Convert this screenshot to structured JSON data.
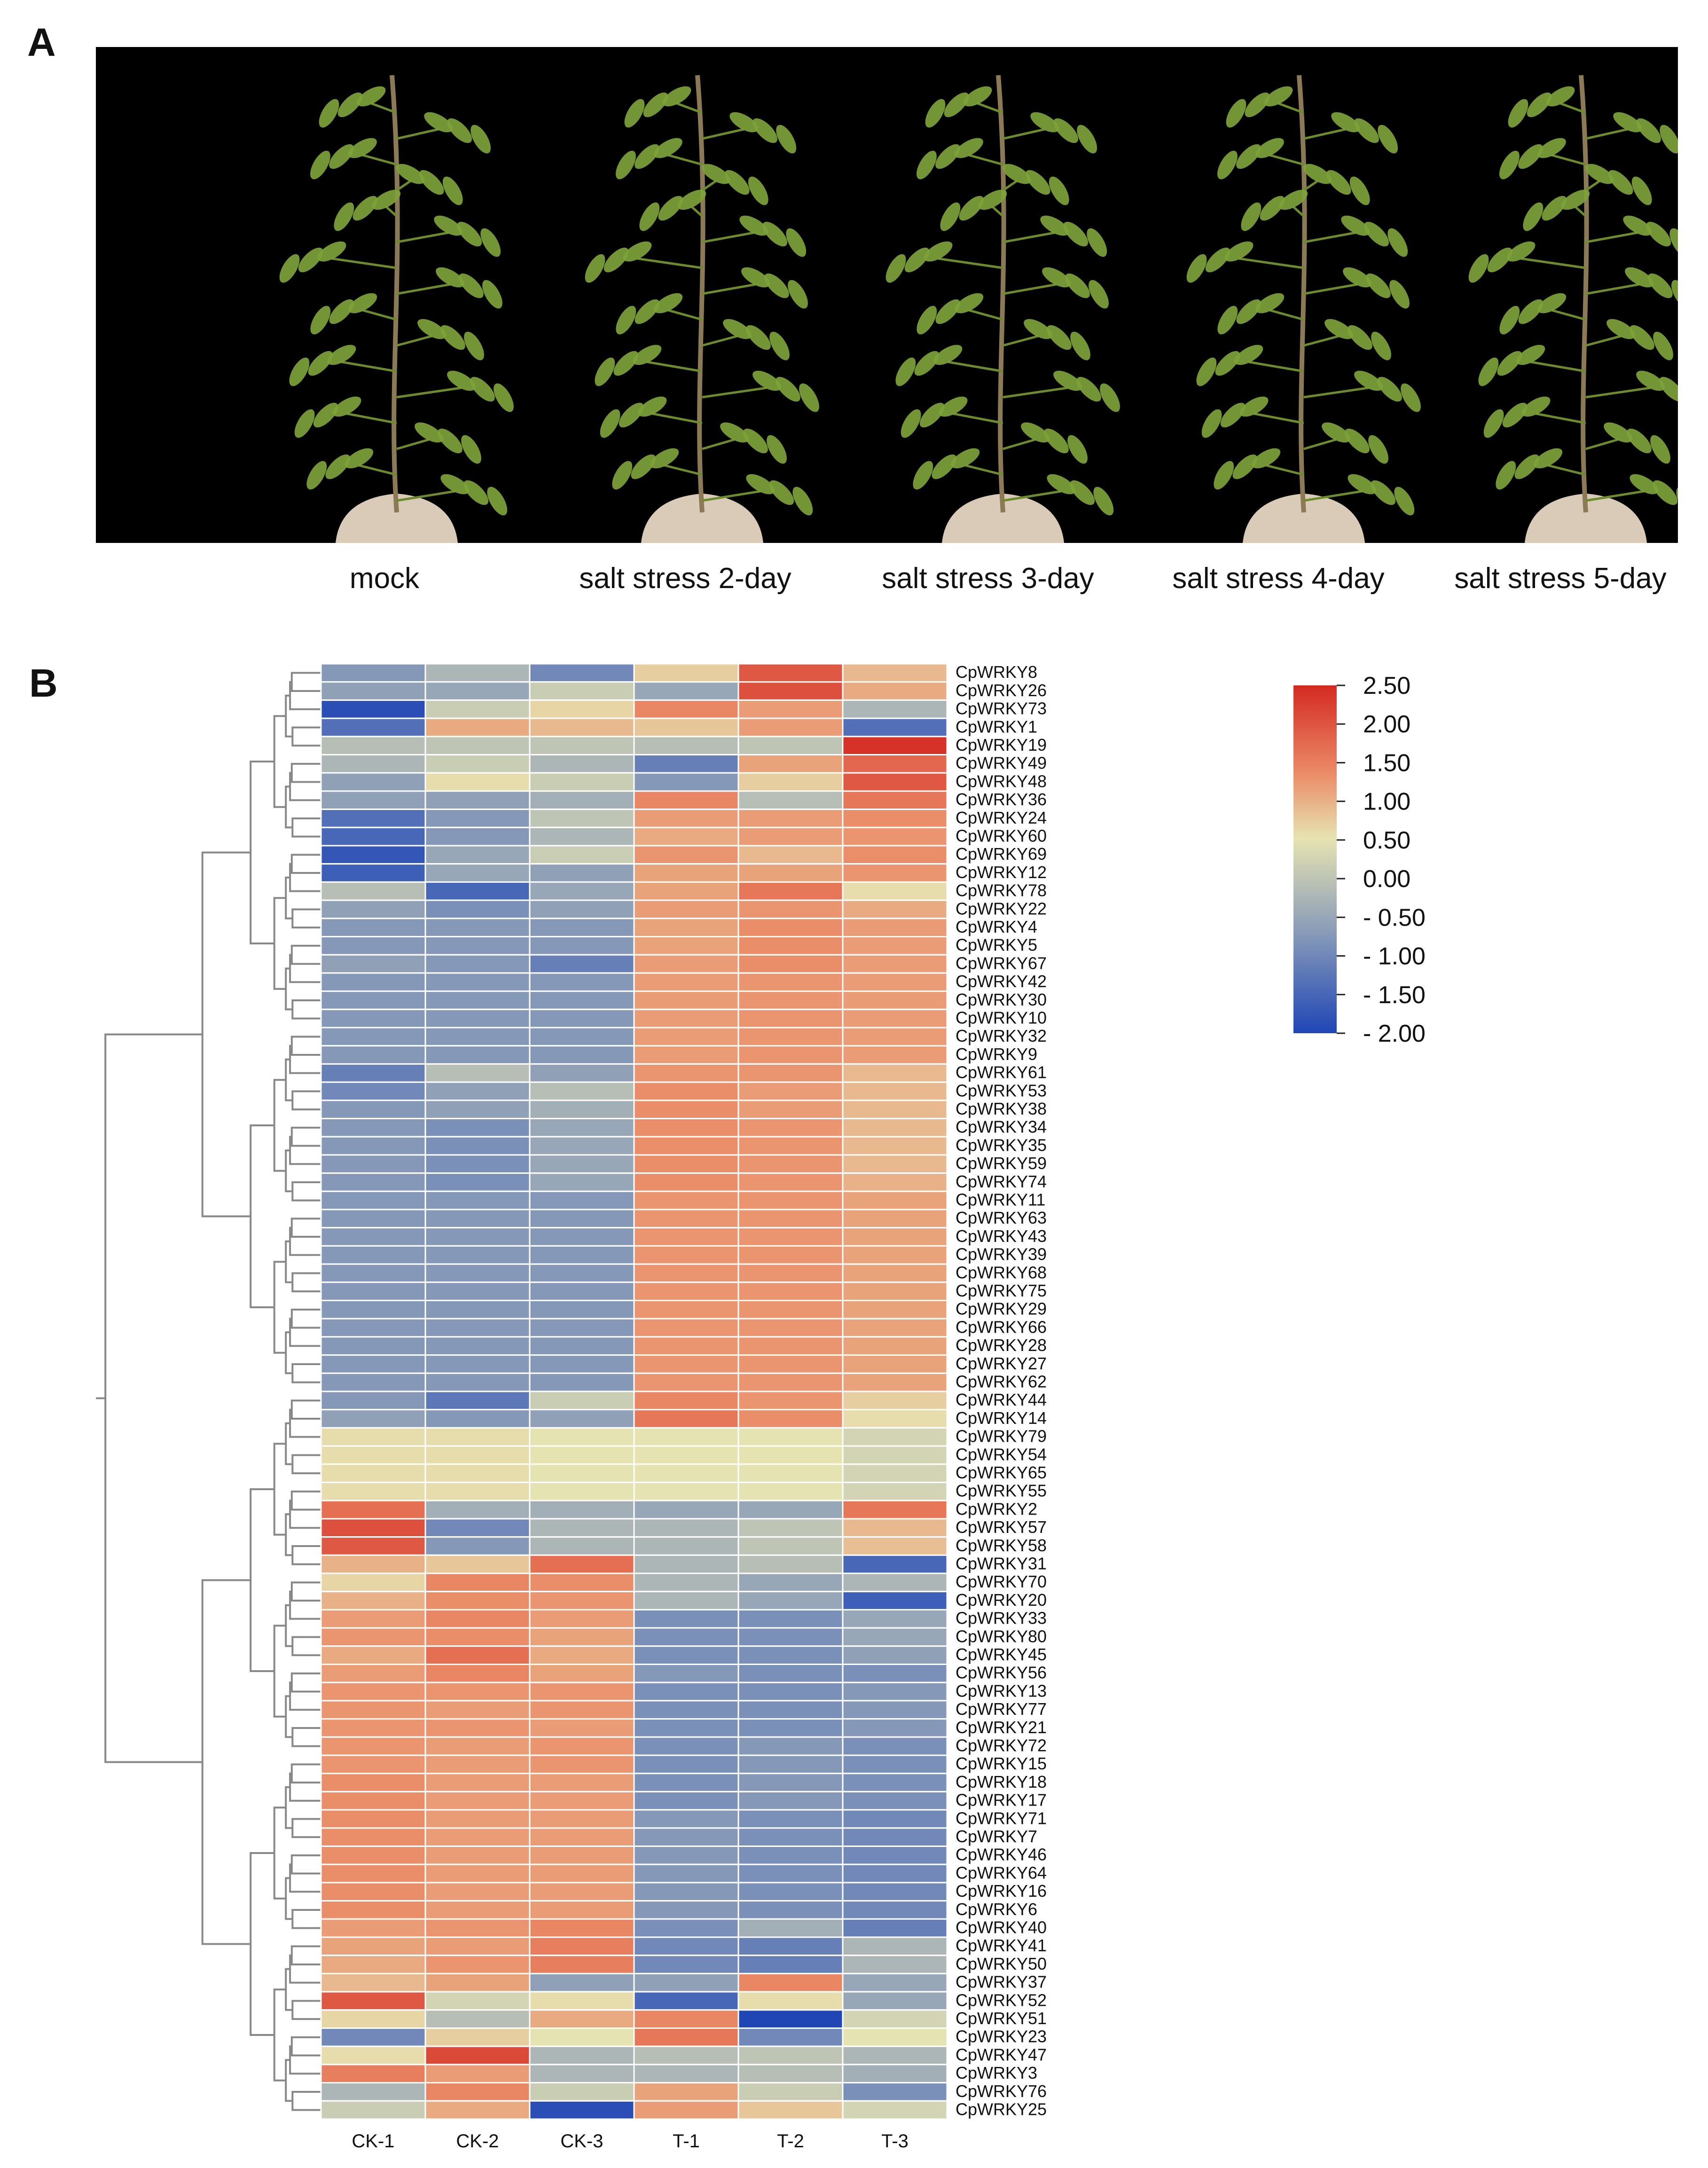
{
  "panels": {
    "a_label": "A",
    "b_label": "B"
  },
  "panel_a": {
    "image_description_items": [
      "mock",
      "salt stress 2-day",
      "salt stress 3-day",
      "salt stress 4-day",
      "salt stress 5-day"
    ],
    "captions": [
      "mock",
      "salt stress 2-day",
      "salt stress 3-day",
      "salt stress 4-day",
      "salt stress 5-day"
    ],
    "background": "#000000",
    "leaf_color": "#7ea23a",
    "pot_color": "#d9cbb8"
  },
  "colors": {
    "high": "#d42a22",
    "mid_high": "#ea8a66",
    "zero": "#e6e3b2",
    "mid_low": "#8598b8",
    "low": "#2046b6",
    "dendrogram": "#888888",
    "cell_border": "#ffffff"
  },
  "chart_data": {
    "type": "heatmap",
    "title": "",
    "columns": [
      "CK-1",
      "CK-2",
      "CK-3",
      "T-1",
      "T-2",
      "T-3"
    ],
    "rows": [
      "CpWRKY8",
      "CpWRKY26",
      "CpWRKY73",
      "CpWRKY1",
      "CpWRKY19",
      "CpWRKY49",
      "CpWRKY48",
      "CpWRKY36",
      "CpWRKY24",
      "CpWRKY60",
      "CpWRKY69",
      "CpWRKY12",
      "CpWRKY78",
      "CpWRKY22",
      "CpWRKY4",
      "CpWRKY5",
      "CpWRKY67",
      "CpWRKY42",
      "CpWRKY30",
      "CpWRKY10",
      "CpWRKY32",
      "CpWRKY9",
      "CpWRKY61",
      "CpWRKY53",
      "CpWRKY38",
      "CpWRKY34",
      "CpWRKY35",
      "CpWRKY59",
      "CpWRKY74",
      "CpWRKY11",
      "CpWRKY63",
      "CpWRKY43",
      "CpWRKY39",
      "CpWRKY68",
      "CpWRKY75",
      "CpWRKY29",
      "CpWRKY66",
      "CpWRKY28",
      "CpWRKY27",
      "CpWRKY62",
      "CpWRKY44",
      "CpWRKY14",
      "CpWRKY79",
      "CpWRKY54",
      "CpWRKY65",
      "CpWRKY55",
      "CpWRKY2",
      "CpWRKY57",
      "CpWRKY58",
      "CpWRKY31",
      "CpWRKY70",
      "CpWRKY20",
      "CpWRKY33",
      "CpWRKY80",
      "CpWRKY45",
      "CpWRKY56",
      "CpWRKY13",
      "CpWRKY77",
      "CpWRKY21",
      "CpWRKY72",
      "CpWRKY15",
      "CpWRKY18",
      "CpWRKY17",
      "CpWRKY71",
      "CpWRKY7",
      "CpWRKY46",
      "CpWRKY64",
      "CpWRKY16",
      "CpWRKY6",
      "CpWRKY40",
      "CpWRKY41",
      "CpWRKY50",
      "CpWRKY37",
      "CpWRKY52",
      "CpWRKY51",
      "CpWRKY23",
      "CpWRKY47",
      "CpWRKY3",
      "CpWRKY76",
      "CpWRKY25"
    ],
    "values": [
      [
        -1.0,
        -0.6,
        -1.2,
        0.3,
        1.9,
        0.6
      ],
      [
        -0.9,
        -0.8,
        -0.3,
        -0.8,
        2.0,
        0.8
      ],
      [
        -1.9,
        -0.3,
        0.2,
        1.3,
        1.0,
        -0.6
      ],
      [
        -1.5,
        0.8,
        0.6,
        0.4,
        1.0,
        -1.5
      ],
      [
        -0.5,
        -0.4,
        -0.4,
        -0.5,
        -0.4,
        2.4
      ],
      [
        -0.6,
        -0.3,
        -0.6,
        -1.3,
        0.9,
        1.7
      ],
      [
        -0.9,
        0.1,
        -0.3,
        -1.0,
        0.3,
        1.9
      ],
      [
        -0.9,
        -0.9,
        -0.7,
        1.3,
        -0.5,
        1.5
      ],
      [
        -1.5,
        -1.0,
        -0.4,
        1.0,
        1.0,
        1.2
      ],
      [
        -1.6,
        -1.0,
        -0.6,
        0.8,
        1.0,
        1.1
      ],
      [
        -1.8,
        -0.8,
        -0.3,
        1.1,
        0.6,
        1.2
      ],
      [
        -1.7,
        -0.8,
        -0.9,
        0.9,
        0.9,
        1.1
      ],
      [
        -0.5,
        -1.6,
        -0.8,
        0.9,
        1.5,
        0.1
      ],
      [
        -0.9,
        -1.1,
        -0.9,
        1.0,
        1.1,
        0.8
      ],
      [
        -1.0,
        -1.0,
        -1.0,
        0.9,
        1.2,
        1.0
      ],
      [
        -1.0,
        -1.0,
        -1.0,
        0.9,
        1.2,
        1.0
      ],
      [
        -0.9,
        -1.0,
        -1.3,
        1.0,
        1.2,
        1.0
      ],
      [
        -1.0,
        -1.0,
        -1.0,
        1.0,
        1.1,
        1.0
      ],
      [
        -1.0,
        -1.0,
        -1.0,
        1.0,
        1.1,
        1.0
      ],
      [
        -1.0,
        -1.0,
        -1.0,
        1.0,
        1.1,
        1.0
      ],
      [
        -1.0,
        -1.0,
        -1.0,
        1.0,
        1.1,
        1.0
      ],
      [
        -1.0,
        -1.0,
        -1.0,
        1.0,
        1.1,
        1.0
      ],
      [
        -1.3,
        -0.5,
        -0.9,
        1.1,
        1.1,
        0.6
      ],
      [
        -1.2,
        -0.9,
        -0.5,
        1.2,
        1.0,
        0.6
      ],
      [
        -1.0,
        -0.9,
        -0.7,
        1.2,
        1.0,
        0.6
      ],
      [
        -1.0,
        -1.1,
        -0.8,
        1.2,
        1.1,
        0.6
      ],
      [
        -1.0,
        -1.1,
        -0.8,
        1.2,
        1.1,
        0.6
      ],
      [
        -1.0,
        -1.1,
        -0.8,
        1.2,
        1.1,
        0.6
      ],
      [
        -1.0,
        -1.1,
        -0.8,
        1.2,
        1.1,
        0.7
      ],
      [
        -1.0,
        -1.0,
        -1.0,
        1.1,
        1.1,
        0.9
      ],
      [
        -1.0,
        -1.0,
        -1.0,
        1.1,
        1.1,
        0.9
      ],
      [
        -1.0,
        -1.0,
        -1.0,
        1.1,
        1.1,
        0.9
      ],
      [
        -1.0,
        -1.0,
        -1.0,
        1.1,
        1.1,
        0.9
      ],
      [
        -1.0,
        -1.0,
        -1.0,
        1.1,
        1.1,
        0.9
      ],
      [
        -1.0,
        -1.0,
        -1.0,
        1.1,
        1.1,
        0.9
      ],
      [
        -1.0,
        -1.0,
        -1.0,
        1.1,
        1.1,
        0.9
      ],
      [
        -1.0,
        -1.0,
        -1.0,
        1.1,
        1.1,
        0.9
      ],
      [
        -1.0,
        -1.0,
        -1.0,
        1.1,
        1.1,
        0.9
      ],
      [
        -1.0,
        -1.0,
        -1.0,
        1.1,
        1.1,
        0.9
      ],
      [
        -1.0,
        -1.0,
        -1.0,
        1.1,
        1.1,
        0.9
      ],
      [
        -1.0,
        -1.4,
        -0.3,
        1.3,
        1.1,
        0.3
      ],
      [
        -0.9,
        -1.0,
        -0.9,
        1.5,
        1.2,
        0.1
      ],
      [
        0.1,
        0.1,
        0.0,
        0.0,
        0.0,
        -0.2
      ],
      [
        0.1,
        0.1,
        0.0,
        0.0,
        0.0,
        -0.2
      ],
      [
        0.1,
        0.1,
        0.0,
        0.0,
        0.0,
        -0.2
      ],
      [
        0.1,
        0.1,
        0.0,
        0.0,
        0.0,
        -0.2
      ],
      [
        1.6,
        -0.7,
        -0.7,
        -0.8,
        -0.8,
        1.5
      ],
      [
        2.0,
        -1.2,
        -0.6,
        -0.6,
        -0.4,
        0.6
      ],
      [
        1.9,
        -1.0,
        -0.6,
        -0.6,
        -0.4,
        0.5
      ],
      [
        0.7,
        0.4,
        1.6,
        -0.6,
        -0.5,
        -1.6
      ],
      [
        0.2,
        1.3,
        1.2,
        -0.6,
        -0.8,
        -0.6
      ],
      [
        0.7,
        1.2,
        1.1,
        -0.6,
        -0.8,
        -1.7
      ],
      [
        1.0,
        1.3,
        1.0,
        -1.1,
        -1.1,
        -0.8
      ],
      [
        1.1,
        1.2,
        0.9,
        -1.1,
        -1.1,
        -0.8
      ],
      [
        0.8,
        1.6,
        0.8,
        -1.1,
        -1.1,
        -0.9
      ],
      [
        1.0,
        1.3,
        0.9,
        -1.0,
        -1.1,
        -1.1
      ],
      [
        1.1,
        1.1,
        1.1,
        -1.1,
        -1.1,
        -1.0
      ],
      [
        1.1,
        1.0,
        1.1,
        -1.1,
        -1.1,
        -1.0
      ],
      [
        1.1,
        1.1,
        1.0,
        -1.1,
        -1.1,
        -1.0
      ],
      [
        1.1,
        1.0,
        1.1,
        -1.1,
        -1.0,
        -1.1
      ],
      [
        1.1,
        1.0,
        1.1,
        -1.1,
        -1.0,
        -1.1
      ],
      [
        1.2,
        1.0,
        1.0,
        -1.1,
        -1.0,
        -1.1
      ],
      [
        1.2,
        1.0,
        1.0,
        -1.1,
        -1.0,
        -1.1
      ],
      [
        1.2,
        1.0,
        1.0,
        -1.0,
        -1.1,
        -1.2
      ],
      [
        1.2,
        1.0,
        1.0,
        -1.0,
        -1.1,
        -1.2
      ],
      [
        1.2,
        1.0,
        1.0,
        -1.0,
        -1.1,
        -1.2
      ],
      [
        1.2,
        1.0,
        1.0,
        -1.0,
        -1.1,
        -1.2
      ],
      [
        1.2,
        1.0,
        1.0,
        -1.0,
        -1.1,
        -1.2
      ],
      [
        1.2,
        1.0,
        1.0,
        -1.0,
        -1.1,
        -1.2
      ],
      [
        1.0,
        1.1,
        1.3,
        -1.1,
        -0.7,
        -1.3
      ],
      [
        0.9,
        1.0,
        1.4,
        -1.2,
        -1.3,
        -0.6
      ],
      [
        0.8,
        1.1,
        1.4,
        -1.2,
        -1.3,
        -0.6
      ],
      [
        0.6,
        0.9,
        -0.9,
        -0.9,
        1.3,
        -0.8
      ],
      [
        1.9,
        -0.2,
        0.1,
        -1.6,
        0.1,
        -0.8
      ],
      [
        0.2,
        -0.5,
        0.8,
        1.3,
        -2.0,
        -0.2
      ],
      [
        -1.2,
        0.3,
        0.0,
        1.5,
        -1.2,
        0.0
      ],
      [
        0.1,
        2.1,
        -0.6,
        -0.5,
        -0.4,
        -0.6
      ],
      [
        1.4,
        1.0,
        -0.6,
        -0.6,
        -0.5,
        -0.7
      ],
      [
        -0.6,
        1.3,
        -0.3,
        0.9,
        -0.3,
        -1.1
      ],
      [
        -0.3,
        0.8,
        -1.9,
        1.0,
        0.4,
        -0.2
      ]
    ],
    "xlabel": "",
    "ylabel": "",
    "color_range": [
      -2.0,
      2.5
    ],
    "colorbar_ticks": [
      "2.50",
      "2.00",
      "1.50",
      "1.00",
      "0.50",
      "0.00",
      "- 0.50",
      "- 1.00",
      "- 1.50",
      "- 2.00"
    ],
    "colorbar_tick_values": [
      2.5,
      2.0,
      1.5,
      1.0,
      0.5,
      0.0,
      -0.5,
      -1.0,
      -1.5,
      -2.0
    ],
    "row_dendrogram": true
  }
}
